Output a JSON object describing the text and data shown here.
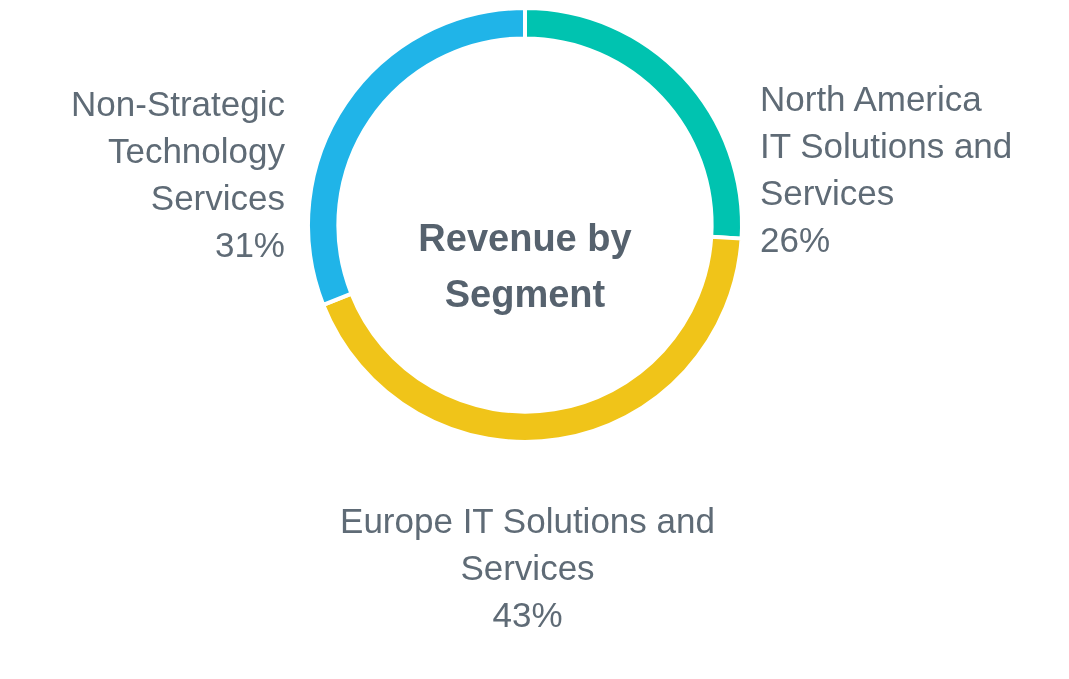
{
  "chart_data": {
    "type": "donut",
    "title": "Revenue by Segment",
    "categories": [
      "North America IT Solutions and Services",
      "Europe IT Solutions and Services",
      "Non-Strategic Technology Services"
    ],
    "values": [
      26,
      43,
      31
    ],
    "value_labels": [
      "26%",
      "43%",
      "31%"
    ],
    "colors": [
      "#00c3b0",
      "#f0c419",
      "#20b4e8"
    ],
    "legend": false
  }
}
